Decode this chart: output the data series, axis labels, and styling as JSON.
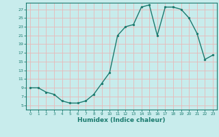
{
  "x": [
    0,
    1,
    2,
    3,
    4,
    5,
    6,
    7,
    8,
    9,
    10,
    11,
    12,
    13,
    14,
    15,
    16,
    17,
    18,
    19,
    20,
    21,
    22,
    23
  ],
  "y": [
    9,
    9,
    8,
    7.5,
    6,
    5.5,
    5.5,
    6,
    7.5,
    10,
    12.5,
    21,
    23,
    23.5,
    27.5,
    28,
    21,
    27.5,
    27.5,
    27,
    25,
    21.5,
    15.5,
    16.5
  ],
  "line_color": "#1a7a6e",
  "marker_color": "#1a7a6e",
  "bg_color": "#c8ecec",
  "grid_color": "#e8b8b8",
  "xlabel": "Humidex (Indice chaleur)",
  "xlim": [
    -0.5,
    23.5
  ],
  "ylim": [
    4,
    28.5
  ],
  "yticks": [
    5,
    7,
    9,
    11,
    13,
    15,
    17,
    19,
    21,
    23,
    25,
    27
  ],
  "xticks": [
    0,
    1,
    2,
    3,
    4,
    5,
    6,
    7,
    8,
    9,
    10,
    11,
    12,
    13,
    14,
    15,
    16,
    17,
    18,
    19,
    20,
    21,
    22,
    23
  ],
  "tick_color": "#1a7a6e",
  "axis_color": "#1a7a6e",
  "linewidth": 1.0,
  "markersize": 2.0
}
